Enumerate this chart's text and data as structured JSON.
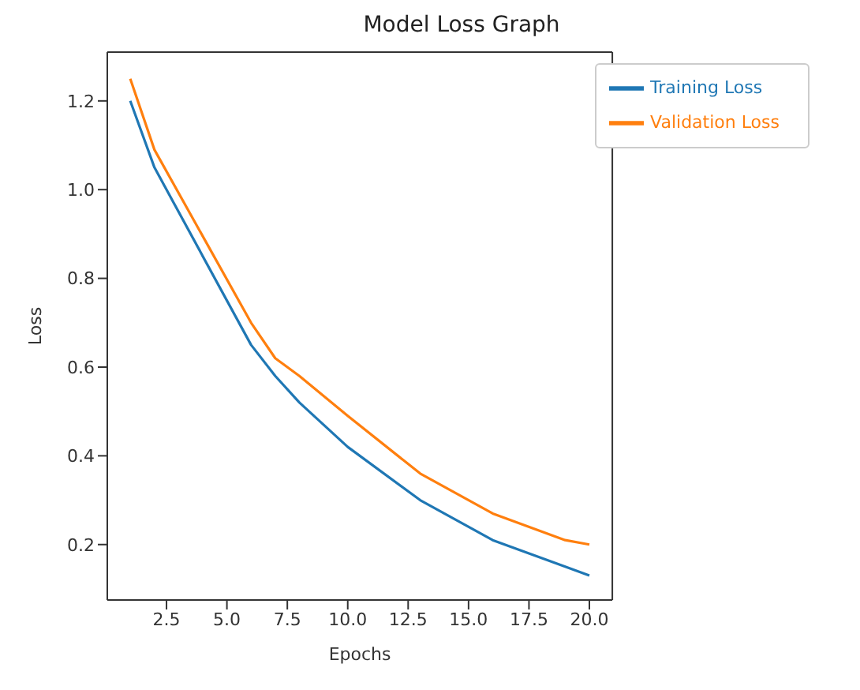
{
  "chart_data": {
    "type": "line",
    "title": "Model Loss Graph",
    "xlabel": "Epochs",
    "ylabel": "Loss",
    "x": [
      1,
      2,
      6,
      7,
      8,
      10,
      13,
      16,
      19,
      20
    ],
    "series": [
      {
        "name": "Training Loss",
        "color": "#1f77b4",
        "values": [
          1.2,
          1.05,
          0.65,
          0.58,
          0.52,
          0.42,
          0.3,
          0.21,
          0.15,
          0.13
        ]
      },
      {
        "name": "Validation Loss",
        "color": "#ff7f0e",
        "values": [
          1.25,
          1.09,
          0.7,
          0.62,
          0.58,
          0.49,
          0.36,
          0.27,
          0.21,
          0.2
        ]
      }
    ],
    "xlim": [
      0.05,
      20.95
    ],
    "xticks": [
      {
        "value": 2.5,
        "label": "2.5"
      },
      {
        "value": 5,
        "label": "5.0"
      },
      {
        "value": 7.5,
        "label": "7.5"
      },
      {
        "value": 10,
        "label": "10.0"
      },
      {
        "value": 12.5,
        "label": "12.5"
      },
      {
        "value": 15,
        "label": "15.0"
      },
      {
        "value": 17.5,
        "label": "17.5"
      },
      {
        "value": 20,
        "label": "20.0"
      }
    ],
    "ylim": [
      0.075,
      1.31
    ],
    "yticks": [
      0.2,
      0.4,
      0.6,
      0.8,
      {
        "value": 1,
        "label": "1.0"
      },
      1.2
    ],
    "grid": false,
    "legend": "top right",
    "marker": "none",
    "line_style": "solid"
  }
}
